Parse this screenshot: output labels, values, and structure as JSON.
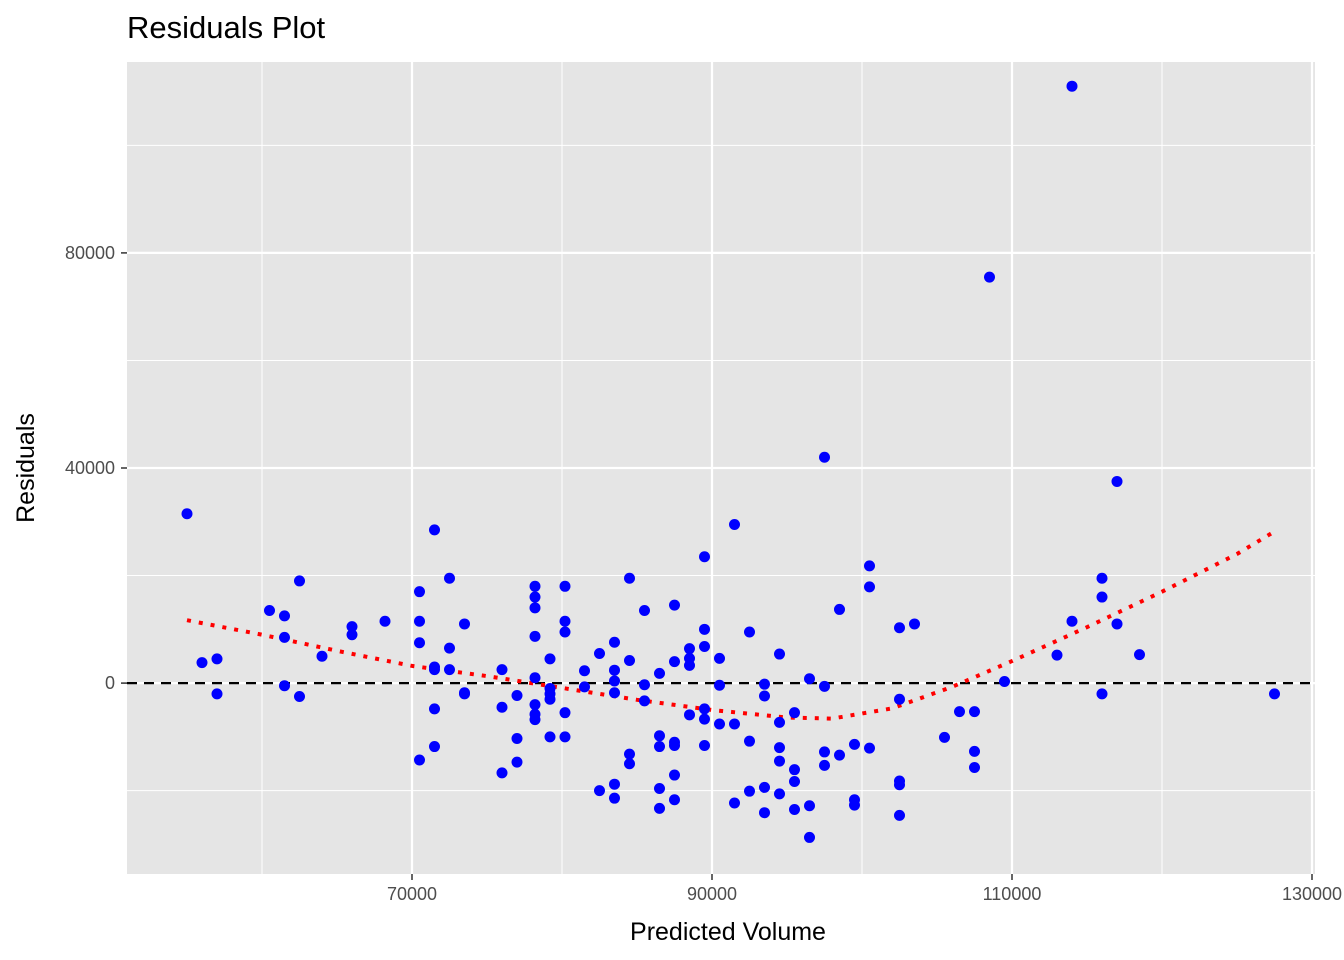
{
  "chart_data": {
    "type": "scatter",
    "title": "Residuals Plot",
    "xlabel": "Predicted Volume",
    "ylabel": "Residuals",
    "xlim": [
      51000,
      130200
    ],
    "ylim": [
      -35500,
      115500
    ],
    "x_ticks": [
      70000,
      90000,
      110000,
      130000
    ],
    "x_tick_labels": [
      "70000",
      "90000",
      "110000",
      "130000"
    ],
    "x_minor_ticks": [
      60000,
      80000,
      100000,
      120000
    ],
    "y_ticks": [
      0,
      40000,
      80000
    ],
    "y_tick_labels": [
      "0",
      "40000",
      "80000"
    ],
    "y_minor_ticks": [
      -20000,
      20000,
      60000,
      100000
    ],
    "grid": true,
    "background_color": "#e5e5e5",
    "grid_color": "#ffffff",
    "point_color": "#0000ff",
    "reference_line": {
      "y": 0,
      "style": "dashed",
      "color": "#000000"
    },
    "smooth_line": {
      "style": "dotted",
      "color": "#ff0000",
      "x": [
        55000,
        60000,
        65000,
        70000,
        75000,
        80000,
        85000,
        90000,
        95000,
        98000,
        102000,
        106000,
        110000,
        115000,
        120000,
        125000,
        127500
      ],
      "y": [
        11700,
        9000,
        6000,
        3200,
        1300,
        -900,
        -3100,
        -5000,
        -6400,
        -6600,
        -4700,
        -700,
        4100,
        10400,
        17000,
        24000,
        28200
      ]
    },
    "series": [
      {
        "points": [
          [
            55000,
            31500
          ],
          [
            56000,
            3800
          ],
          [
            57000,
            4500
          ],
          [
            57000,
            -2000
          ],
          [
            60500,
            13500
          ],
          [
            61500,
            12500
          ],
          [
            61500,
            8500
          ],
          [
            61500,
            -500
          ],
          [
            62500,
            19000
          ],
          [
            62500,
            -2500
          ],
          [
            64000,
            5000
          ],
          [
            66000,
            10500
          ],
          [
            66000,
            9000
          ],
          [
            68200,
            11500
          ],
          [
            70500,
            17000
          ],
          [
            70500,
            11500
          ],
          [
            70500,
            7500
          ],
          [
            70500,
            -14300
          ],
          [
            71500,
            28500
          ],
          [
            71500,
            3000
          ],
          [
            71500,
            2500
          ],
          [
            71500,
            -4800
          ],
          [
            71500,
            -11800
          ],
          [
            72500,
            19500
          ],
          [
            72500,
            6500
          ],
          [
            72500,
            2500
          ],
          [
            73500,
            11000
          ],
          [
            73500,
            -1800
          ],
          [
            73500,
            -2000
          ],
          [
            76000,
            2500
          ],
          [
            76000,
            -4500
          ],
          [
            76000,
            -16700
          ],
          [
            77000,
            -2300
          ],
          [
            77000,
            -10300
          ],
          [
            77000,
            -14700
          ],
          [
            78200,
            18000
          ],
          [
            78200,
            16000
          ],
          [
            78200,
            14000
          ],
          [
            78200,
            8700
          ],
          [
            78200,
            1000
          ],
          [
            78200,
            -4000
          ],
          [
            78200,
            -5800
          ],
          [
            78200,
            -6800
          ],
          [
            79200,
            4500
          ],
          [
            79200,
            -1000
          ],
          [
            79200,
            -2000
          ],
          [
            79200,
            -3000
          ],
          [
            79200,
            -10000
          ],
          [
            80200,
            18000
          ],
          [
            80200,
            11500
          ],
          [
            80200,
            9500
          ],
          [
            80200,
            -5500
          ],
          [
            80200,
            -10000
          ],
          [
            81500,
            2300
          ],
          [
            81500,
            -700
          ],
          [
            82500,
            5500
          ],
          [
            82500,
            -20000
          ],
          [
            83500,
            7600
          ],
          [
            83500,
            2400
          ],
          [
            83500,
            400
          ],
          [
            83500,
            -1800
          ],
          [
            83500,
            -18800
          ],
          [
            83500,
            -21400
          ],
          [
            84500,
            19500
          ],
          [
            84500,
            4200
          ],
          [
            84500,
            -13200
          ],
          [
            84500,
            -15000
          ],
          [
            85500,
            13500
          ],
          [
            85500,
            -300
          ],
          [
            85500,
            -3300
          ],
          [
            86500,
            1800
          ],
          [
            86500,
            -9800
          ],
          [
            86500,
            -11800
          ],
          [
            86500,
            -19600
          ],
          [
            86500,
            -23300
          ],
          [
            87500,
            14500
          ],
          [
            87500,
            4000
          ],
          [
            87500,
            -11000
          ],
          [
            87500,
            -11600
          ],
          [
            87500,
            -17100
          ],
          [
            87500,
            -21700
          ],
          [
            88500,
            6400
          ],
          [
            88500,
            4600
          ],
          [
            88500,
            3300
          ],
          [
            88500,
            -5900
          ],
          [
            89500,
            23500
          ],
          [
            89500,
            10000
          ],
          [
            89500,
            6800
          ],
          [
            89500,
            -4800
          ],
          [
            89500,
            -6700
          ],
          [
            89500,
            -11600
          ],
          [
            90500,
            4600
          ],
          [
            90500,
            -400
          ],
          [
            90500,
            -7600
          ],
          [
            91500,
            29500
          ],
          [
            91500,
            -7600
          ],
          [
            91500,
            -22300
          ],
          [
            92500,
            9500
          ],
          [
            92500,
            -10800
          ],
          [
            92500,
            -20100
          ],
          [
            93500,
            -200
          ],
          [
            93500,
            -2400
          ],
          [
            93500,
            -19400
          ],
          [
            93500,
            -24100
          ],
          [
            94500,
            5400
          ],
          [
            94500,
            -7300
          ],
          [
            94500,
            -12000
          ],
          [
            94500,
            -14500
          ],
          [
            94500,
            -20600
          ],
          [
            95500,
            -5500
          ],
          [
            95500,
            -16100
          ],
          [
            95500,
            -18300
          ],
          [
            95500,
            -23500
          ],
          [
            96500,
            800
          ],
          [
            96500,
            -22800
          ],
          [
            96500,
            -28700
          ],
          [
            97500,
            42000
          ],
          [
            97500,
            -600
          ],
          [
            97500,
            -12800
          ],
          [
            97500,
            -15300
          ],
          [
            98500,
            13700
          ],
          [
            98500,
            -13400
          ],
          [
            99500,
            -11400
          ],
          [
            99500,
            -21700
          ],
          [
            99500,
            -22700
          ],
          [
            100500,
            21800
          ],
          [
            100500,
            17900
          ],
          [
            100500,
            -12100
          ],
          [
            102500,
            10300
          ],
          [
            102500,
            -3000
          ],
          [
            102500,
            -18200
          ],
          [
            102500,
            -18900
          ],
          [
            102500,
            -24600
          ],
          [
            103500,
            11000
          ],
          [
            105500,
            -10100
          ],
          [
            106500,
            -5300
          ],
          [
            107500,
            -5300
          ],
          [
            107500,
            -12700
          ],
          [
            107500,
            -15700
          ],
          [
            108500,
            75500
          ],
          [
            109500,
            300
          ],
          [
            113000,
            5200
          ],
          [
            114000,
            111000
          ],
          [
            114000,
            11500
          ],
          [
            116000,
            19500
          ],
          [
            116000,
            16000
          ],
          [
            116000,
            -2000
          ],
          [
            117000,
            37500
          ],
          [
            117000,
            11000
          ],
          [
            118500,
            5300
          ],
          [
            127500,
            -2000
          ]
        ]
      }
    ]
  }
}
